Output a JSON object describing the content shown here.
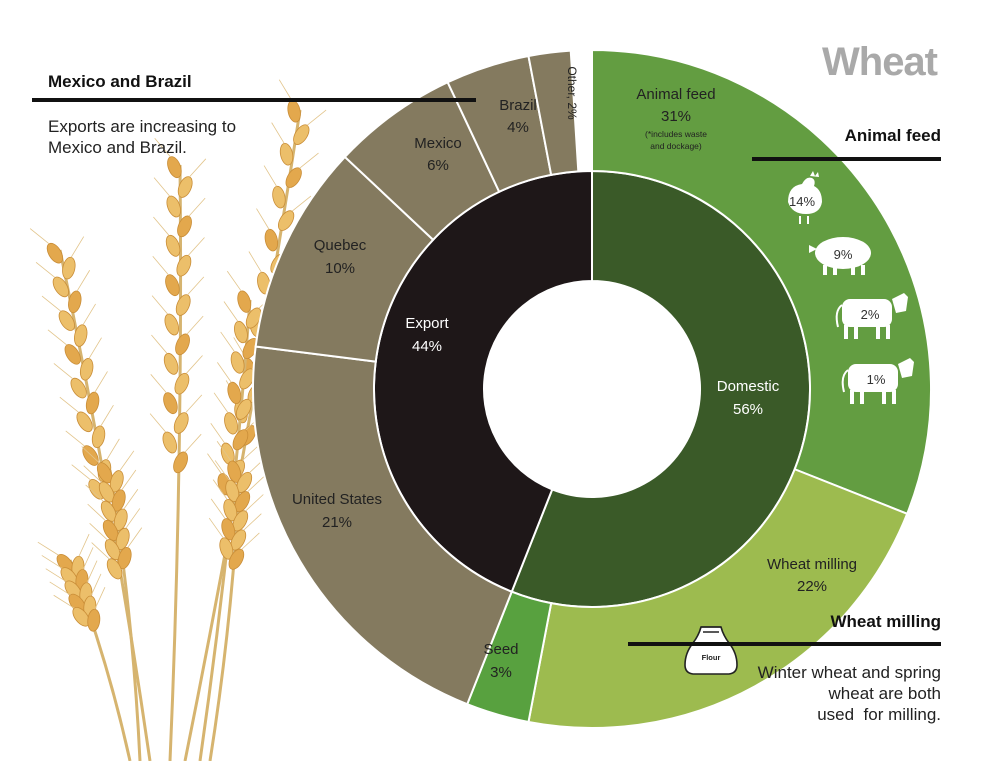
{
  "title": "Wheat",
  "callouts": {
    "mexico_brazil": {
      "heading": "Mexico and Brazil",
      "body": [
        "Exports are increasing to",
        "Mexico and Brazil."
      ]
    },
    "animal_feed": {
      "heading": "Animal feed"
    },
    "wheat_milling": {
      "heading": "Wheat milling",
      "body": [
        "Winter wheat and spring",
        "wheat are both",
        "used  for milling."
      ]
    }
  },
  "flour_bag_label": "Flour",
  "colors": {
    "export": "#1e1718",
    "domestic": "#3a5a28",
    "export_outer": "#847a5f",
    "animal_feed": "#639d41",
    "wheat_milling": "#9dbb4f",
    "seed": "#58a13f",
    "title": "#a9a9a9"
  },
  "chart_data": {
    "type": "pie",
    "title": "Wheat",
    "inner_ring": [
      {
        "label": "Export",
        "value": 44,
        "display": "44%"
      },
      {
        "label": "Domestic",
        "value": 56,
        "display": "56%"
      }
    ],
    "outer_ring": [
      {
        "label": "Animal feed",
        "value": 31,
        "display": "31%",
        "note": "(*includes waste",
        "note2": "and dockage)",
        "parent": "Domestic"
      },
      {
        "label": "Wheat milling",
        "value": 22,
        "display": "22%",
        "parent": "Domestic"
      },
      {
        "label": "Seed",
        "value": 3,
        "display": "3%",
        "parent": "Domestic"
      },
      {
        "label": "United States",
        "value": 21,
        "display": "21%",
        "parent": "Export"
      },
      {
        "label": "Quebec",
        "value": 10,
        "display": "10%",
        "parent": "Export"
      },
      {
        "label": "Mexico",
        "value": 6,
        "display": "6%",
        "parent": "Export"
      },
      {
        "label": "Brazil",
        "value": 4,
        "display": "4%",
        "parent": "Export"
      },
      {
        "label": "Other,",
        "value": 2,
        "display": "2%",
        "parent": "Export"
      }
    ],
    "animal_feed_breakdown": [
      {
        "animal": "chicken-icon",
        "value": 14,
        "display": "14%"
      },
      {
        "animal": "pig-icon",
        "value": 9,
        "display": "9%"
      },
      {
        "animal": "cow-icon",
        "value": 2,
        "display": "2%"
      },
      {
        "animal": "cow-icon",
        "value": 1,
        "display": "1%"
      }
    ]
  }
}
